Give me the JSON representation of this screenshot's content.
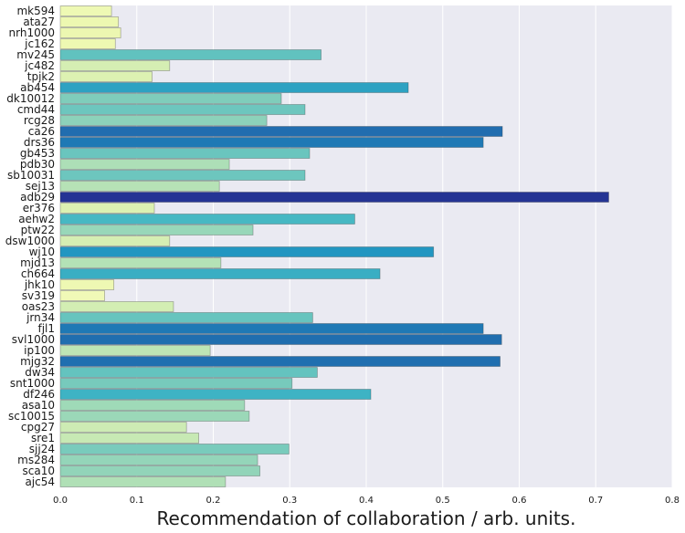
{
  "chart_data": {
    "type": "bar",
    "orientation": "horizontal",
    "title": "",
    "xlabel": "Recommendation of collaboration / arb. units.",
    "ylabel": "",
    "xlim": [
      0.0,
      0.8
    ],
    "xticks": [
      "0.0",
      "0.1",
      "0.2",
      "0.3",
      "0.4",
      "0.5",
      "0.6",
      "0.7",
      "0.8"
    ],
    "grid": true,
    "colormap": [
      "#ffffd9",
      "#edf8b1",
      "#c7e9b4",
      "#7fcdbb",
      "#41b6c4",
      "#1d91c0",
      "#225ea8",
      "#253494"
    ],
    "categories": [
      "mk594",
      "ata27",
      "nrh1000",
      "jc162",
      "mv245",
      "jc482",
      "tpjk2",
      "ab454",
      "dk10012",
      "cmd44",
      "rcg28",
      "ca26",
      "drs36",
      "gb453",
      "pdb30",
      "sb10031",
      "sej13",
      "adb29",
      "er376",
      "aehw2",
      "ptw22",
      "dsw1000",
      "wj10",
      "mjd13",
      "ch664",
      "jhk10",
      "sv319",
      "oas23",
      "jrn34",
      "fjl1",
      "svl1000",
      "ip100",
      "mjg32",
      "dw34",
      "snt1000",
      "df246",
      "asa10",
      "sc10015",
      "cpg27",
      "sre1",
      "sjj24",
      "ms284",
      "sca10",
      "ajc54"
    ],
    "values": [
      0.067,
      0.076,
      0.079,
      0.072,
      0.341,
      0.143,
      0.12,
      0.455,
      0.289,
      0.32,
      0.27,
      0.578,
      0.553,
      0.326,
      0.221,
      0.32,
      0.208,
      0.717,
      0.123,
      0.385,
      0.252,
      0.143,
      0.488,
      0.21,
      0.418,
      0.07,
      0.058,
      0.148,
      0.33,
      0.553,
      0.577,
      0.196,
      0.575,
      0.336,
      0.303,
      0.406,
      0.241,
      0.247,
      0.165,
      0.181,
      0.299,
      0.258,
      0.261,
      0.216
    ]
  }
}
